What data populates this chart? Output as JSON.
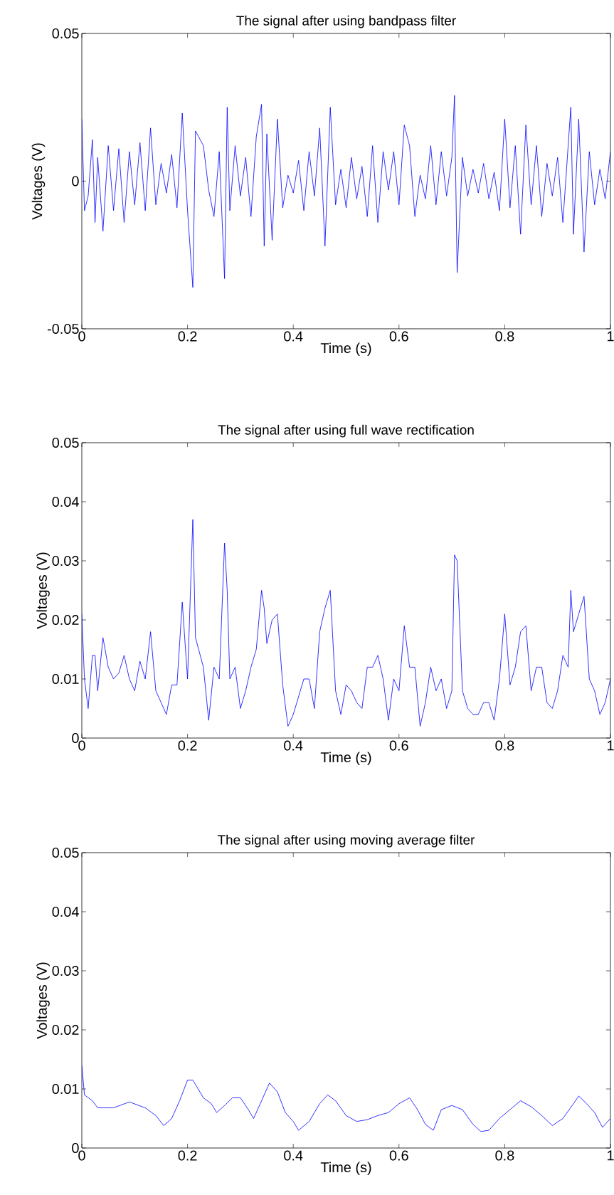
{
  "chart_data": [
    {
      "type": "line",
      "title": "The signal after using bandpass filter",
      "xlabel": "Time (s)",
      "ylabel": "Voltages (V)",
      "color": "#0000ff",
      "x": [
        0,
        0.005,
        0.012,
        0.02,
        0.025,
        0.03,
        0.04,
        0.05,
        0.06,
        0.07,
        0.08,
        0.09,
        0.1,
        0.11,
        0.12,
        0.13,
        0.14,
        0.15,
        0.16,
        0.17,
        0.18,
        0.19,
        0.2,
        0.21,
        0.215,
        0.23,
        0.24,
        0.25,
        0.26,
        0.27,
        0.275,
        0.28,
        0.29,
        0.3,
        0.31,
        0.32,
        0.33,
        0.34,
        0.345,
        0.35,
        0.36,
        0.37,
        0.38,
        0.39,
        0.4,
        0.41,
        0.42,
        0.43,
        0.44,
        0.45,
        0.46,
        0.47,
        0.48,
        0.49,
        0.5,
        0.51,
        0.52,
        0.53,
        0.54,
        0.55,
        0.56,
        0.57,
        0.58,
        0.59,
        0.6,
        0.61,
        0.62,
        0.63,
        0.64,
        0.65,
        0.66,
        0.67,
        0.68,
        0.69,
        0.7,
        0.705,
        0.71,
        0.72,
        0.73,
        0.74,
        0.75,
        0.76,
        0.77,
        0.78,
        0.79,
        0.8,
        0.81,
        0.82,
        0.83,
        0.84,
        0.85,
        0.86,
        0.87,
        0.88,
        0.89,
        0.9,
        0.91,
        0.92,
        0.925,
        0.93,
        0.94,
        0.95,
        0.96,
        0.97,
        0.98,
        0.99,
        1
      ],
      "values": [
        0.021,
        -0.01,
        -0.005,
        0.014,
        -0.014,
        0.008,
        -0.017,
        0.012,
        -0.01,
        0.011,
        -0.014,
        0.01,
        -0.008,
        0.013,
        -0.01,
        0.018,
        -0.008,
        0.006,
        -0.004,
        0.009,
        -0.009,
        0.023,
        -0.01,
        -0.036,
        0.017,
        0.012,
        -0.003,
        -0.012,
        0.01,
        -0.033,
        0.025,
        -0.01,
        0.012,
        -0.005,
        0.008,
        -0.012,
        0.015,
        0.026,
        -0.022,
        0.016,
        -0.02,
        0.021,
        -0.009,
        0.002,
        -0.004,
        0.007,
        -0.01,
        0.01,
        -0.005,
        0.018,
        -0.022,
        0.025,
        -0.008,
        0.004,
        -0.009,
        0.008,
        -0.006,
        0.005,
        -0.012,
        0.012,
        -0.014,
        0.01,
        -0.003,
        0.01,
        -0.008,
        0.019,
        0.012,
        -0.012,
        0.002,
        -0.006,
        0.012,
        -0.008,
        0.01,
        -0.005,
        0.008,
        0.029,
        -0.031,
        0.008,
        -0.005,
        0.004,
        -0.004,
        0.006,
        -0.006,
        0.003,
        -0.01,
        0.021,
        -0.009,
        0.012,
        -0.018,
        0.019,
        -0.008,
        0.012,
        -0.012,
        0.006,
        -0.005,
        0.008,
        -0.014,
        0.012,
        0.025,
        -0.018,
        0.021,
        -0.024,
        0.01,
        -0.008,
        0.004,
        -0.006,
        0.01
      ],
      "xlim": [
        0,
        1
      ],
      "ylim": [
        -0.05,
        0.05
      ],
      "xticks": [
        0,
        0.2,
        0.4,
        0.6,
        0.8,
        1
      ],
      "yticks": [
        -0.05,
        0,
        0.05
      ]
    },
    {
      "type": "line",
      "title": "The signal after using full wave rectification",
      "xlabel": "Time (s)",
      "ylabel": "Voltages (V)",
      "color": "#0000ff",
      "x": [
        0,
        0.005,
        0.012,
        0.02,
        0.025,
        0.03,
        0.04,
        0.05,
        0.06,
        0.07,
        0.08,
        0.09,
        0.1,
        0.11,
        0.12,
        0.13,
        0.14,
        0.15,
        0.16,
        0.17,
        0.18,
        0.19,
        0.2,
        0.21,
        0.215,
        0.23,
        0.24,
        0.25,
        0.26,
        0.27,
        0.275,
        0.28,
        0.29,
        0.3,
        0.31,
        0.32,
        0.33,
        0.34,
        0.345,
        0.35,
        0.36,
        0.37,
        0.38,
        0.39,
        0.4,
        0.41,
        0.42,
        0.43,
        0.44,
        0.45,
        0.46,
        0.47,
        0.48,
        0.49,
        0.5,
        0.51,
        0.52,
        0.53,
        0.54,
        0.55,
        0.56,
        0.57,
        0.58,
        0.59,
        0.6,
        0.61,
        0.62,
        0.63,
        0.64,
        0.65,
        0.66,
        0.67,
        0.68,
        0.69,
        0.7,
        0.705,
        0.71,
        0.72,
        0.73,
        0.74,
        0.75,
        0.76,
        0.77,
        0.78,
        0.79,
        0.8,
        0.81,
        0.82,
        0.83,
        0.84,
        0.85,
        0.86,
        0.87,
        0.88,
        0.89,
        0.9,
        0.91,
        0.92,
        0.925,
        0.93,
        0.94,
        0.95,
        0.96,
        0.97,
        0.98,
        0.99,
        1
      ],
      "values": [
        0.021,
        0.01,
        0.005,
        0.014,
        0.014,
        0.008,
        0.017,
        0.012,
        0.01,
        0.011,
        0.014,
        0.01,
        0.008,
        0.013,
        0.01,
        0.018,
        0.008,
        0.006,
        0.004,
        0.009,
        0.009,
        0.023,
        0.01,
        0.037,
        0.017,
        0.012,
        0.003,
        0.012,
        0.01,
        0.033,
        0.025,
        0.01,
        0.012,
        0.005,
        0.008,
        0.012,
        0.015,
        0.025,
        0.022,
        0.016,
        0.02,
        0.021,
        0.009,
        0.002,
        0.004,
        0.007,
        0.01,
        0.01,
        0.005,
        0.018,
        0.022,
        0.025,
        0.008,
        0.004,
        0.009,
        0.008,
        0.006,
        0.005,
        0.012,
        0.012,
        0.014,
        0.01,
        0.003,
        0.01,
        0.008,
        0.019,
        0.012,
        0.012,
        0.002,
        0.006,
        0.012,
        0.008,
        0.01,
        0.005,
        0.008,
        0.031,
        0.03,
        0.008,
        0.005,
        0.004,
        0.004,
        0.006,
        0.006,
        0.003,
        0.01,
        0.021,
        0.009,
        0.012,
        0.018,
        0.019,
        0.008,
        0.012,
        0.012,
        0.006,
        0.005,
        0.008,
        0.014,
        0.012,
        0.025,
        0.018,
        0.021,
        0.024,
        0.01,
        0.008,
        0.004,
        0.006,
        0.01
      ],
      "xlim": [
        0,
        1
      ],
      "ylim": [
        0,
        0.05
      ],
      "xticks": [
        0,
        0.2,
        0.4,
        0.6,
        0.8,
        1
      ],
      "yticks": [
        0,
        0.01,
        0.02,
        0.03,
        0.04,
        0.05
      ]
    },
    {
      "type": "line",
      "title": "The signal after using moving average filter",
      "xlabel": "Time (s)",
      "ylabel": "Voltages (V)",
      "color": "#0000ff",
      "x": [
        0,
        0.005,
        0.02,
        0.03,
        0.06,
        0.09,
        0.12,
        0.14,
        0.155,
        0.17,
        0.185,
        0.2,
        0.21,
        0.23,
        0.245,
        0.255,
        0.27,
        0.285,
        0.3,
        0.315,
        0.325,
        0.34,
        0.355,
        0.37,
        0.385,
        0.4,
        0.41,
        0.43,
        0.45,
        0.465,
        0.48,
        0.5,
        0.52,
        0.54,
        0.56,
        0.58,
        0.6,
        0.62,
        0.635,
        0.65,
        0.665,
        0.68,
        0.7,
        0.72,
        0.74,
        0.755,
        0.77,
        0.79,
        0.81,
        0.83,
        0.85,
        0.87,
        0.89,
        0.91,
        0.93,
        0.94,
        0.955,
        0.97,
        0.985,
        1
      ],
      "values": [
        0.014,
        0.009,
        0.008,
        0.0068,
        0.0068,
        0.0078,
        0.0068,
        0.0055,
        0.0038,
        0.005,
        0.008,
        0.0115,
        0.0115,
        0.0085,
        0.0075,
        0.006,
        0.0072,
        0.0085,
        0.0085,
        0.0065,
        0.005,
        0.008,
        0.011,
        0.0095,
        0.006,
        0.0045,
        0.003,
        0.0045,
        0.0075,
        0.009,
        0.008,
        0.0055,
        0.0045,
        0.0048,
        0.0055,
        0.006,
        0.0075,
        0.0085,
        0.0065,
        0.004,
        0.003,
        0.0065,
        0.0072,
        0.0065,
        0.004,
        0.0028,
        0.003,
        0.005,
        0.0065,
        0.008,
        0.007,
        0.0055,
        0.0038,
        0.005,
        0.0075,
        0.0088,
        0.0075,
        0.006,
        0.0035,
        0.005
      ],
      "xlim": [
        0,
        1
      ],
      "ylim": [
        0,
        0.05
      ],
      "xticks": [
        0,
        0.2,
        0.4,
        0.6,
        0.8,
        1
      ],
      "yticks": [
        0,
        0.01,
        0.02,
        0.03,
        0.04,
        0.05
      ]
    }
  ]
}
